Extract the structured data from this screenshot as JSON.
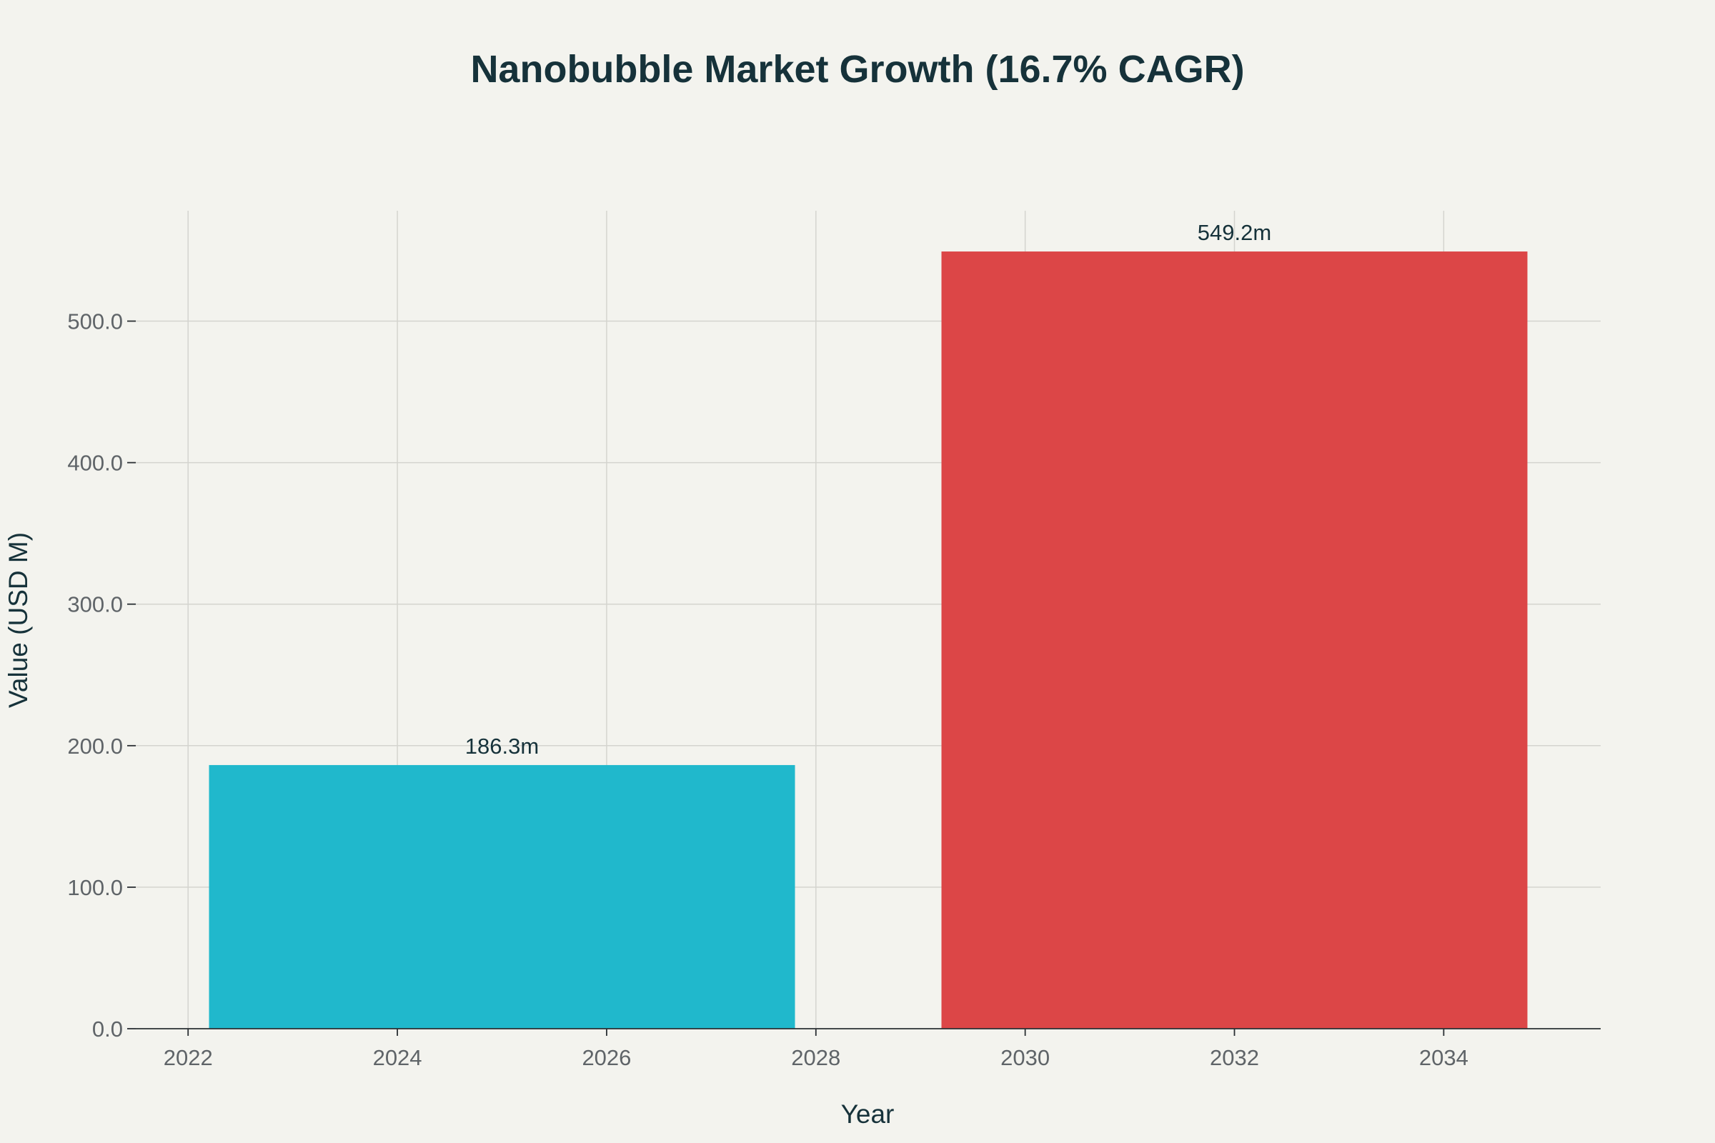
{
  "chart_data": {
    "type": "bar",
    "title": "Nanobubble Market Growth (16.7% CAGR)",
    "xlabel": "Year",
    "ylabel": "Value (USD M)",
    "bars": [
      {
        "x_start": 2022.2,
        "x_end": 2027.8,
        "value": 186.3,
        "label": "186.3m",
        "color": "#20b8cc"
      },
      {
        "x_start": 2029.2,
        "x_end": 2034.8,
        "value": 549.2,
        "label": "549.2m",
        "color": "#dc4647"
      }
    ],
    "xlim": [
      2021.5,
      2035.5
    ],
    "ylim": [
      0,
      578
    ],
    "x_ticks": [
      2022,
      2024,
      2026,
      2028,
      2030,
      2032,
      2034
    ],
    "x_tick_labels": [
      "2022",
      "2024",
      "2026",
      "2028",
      "2030",
      "2032",
      "2034"
    ],
    "y_ticks": [
      0,
      100,
      200,
      300,
      400,
      500
    ],
    "y_tick_labels": [
      "0.0",
      "100.0",
      "200.0",
      "300.0",
      "400.0",
      "500.0"
    ],
    "grid": true,
    "legend": "none"
  }
}
